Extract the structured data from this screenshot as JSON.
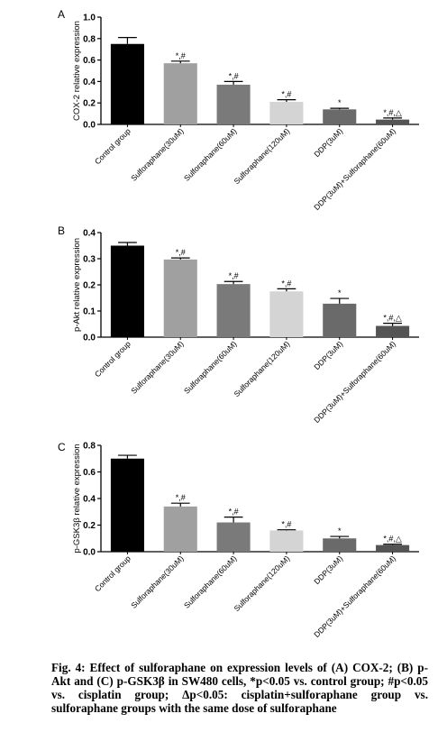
{
  "chart_data": [
    {
      "type": "bar",
      "panel_label": "A",
      "ylabel": "COX-2 relative expression",
      "ylim": [
        0,
        1.0
      ],
      "yticks": [
        "0.0",
        "0.2",
        "0.4",
        "0.6",
        "0.8",
        "1.0"
      ],
      "categories": [
        "Control group",
        "Sulforaphane(30uM)",
        "Sulforaphane(60uM)",
        "Sulforaphane(120uM)",
        "DDP(3uM)",
        "DDP(3uM)+Sulforaphane(60uM)"
      ],
      "values": [
        0.75,
        0.57,
        0.37,
        0.21,
        0.14,
        0.045
      ],
      "errors": [
        0.06,
        0.02,
        0.03,
        0.02,
        0.01,
        0.015
      ],
      "annotations": [
        "",
        "*,#",
        "*,#",
        "*,#",
        "*",
        "*,#,△"
      ],
      "colors": [
        "#000000",
        "#a0a0a0",
        "#7a7a7a",
        "#d4d4d4",
        "#6a6a6a",
        "#545454"
      ],
      "grid": false
    },
    {
      "type": "bar",
      "panel_label": "B",
      "ylabel": "p-Akt relative expression",
      "ylim": [
        0,
        0.4
      ],
      "yticks": [
        "0.0",
        "0.1",
        "0.2",
        "0.3",
        "0.4"
      ],
      "categories": [
        "Control group",
        "Sulforaphane(30uM)",
        "Sulforaphane(60uM)",
        "Sulforaphane(120uM)",
        "DDP(3uM)",
        "DDP(3uM)+Sulforaphane(60uM)"
      ],
      "values": [
        0.35,
        0.297,
        0.203,
        0.175,
        0.128,
        0.043
      ],
      "errors": [
        0.012,
        0.006,
        0.01,
        0.01,
        0.02,
        0.01
      ],
      "annotations": [
        "",
        "*,#",
        "*,#",
        "*,#",
        "*",
        "*,#,△"
      ],
      "colors": [
        "#000000",
        "#a0a0a0",
        "#7a7a7a",
        "#d4d4d4",
        "#6a6a6a",
        "#545454"
      ],
      "grid": false
    },
    {
      "type": "bar",
      "panel_label": "C",
      "ylabel": "p-GSK3β relative expression",
      "ylim": [
        0,
        0.8
      ],
      "yticks": [
        "0.0",
        "0.2",
        "0.4",
        "0.6",
        "0.8"
      ],
      "categories": [
        "Control group",
        "Sulforaphane(30uM)",
        "Sulforaphane(60uM)",
        "Sulforaphane(120uM)",
        "DDP(3uM)",
        "DDP(3uM)+Sulforaphane(60uM)"
      ],
      "values": [
        0.7,
        0.34,
        0.22,
        0.16,
        0.1,
        0.05
      ],
      "errors": [
        0.025,
        0.025,
        0.04,
        0.005,
        0.015,
        0.006
      ],
      "annotations": [
        "",
        "*,#",
        "*,#",
        "*,#",
        "*",
        "*,#,△"
      ],
      "colors": [
        "#000000",
        "#a0a0a0",
        "#7a7a7a",
        "#d4d4d4",
        "#6a6a6a",
        "#545454"
      ],
      "grid": false
    }
  ],
  "caption": {
    "text": "Fig. 4: Effect of sulforaphane on expression levels of (A) COX-2; (B) p-Akt and (C) p-GSK3β in SW480 cells, *p<0.05 vs. control group; #p<0.05 vs. cisplatin group; Δp<0.05: cisplatin+sulforaphane group vs. sulforaphane groups with the same dose of sulforaphane"
  }
}
